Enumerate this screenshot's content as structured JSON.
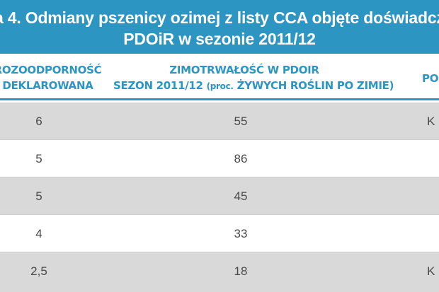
{
  "title": {
    "line1": "a 4. Odmiany pszenicy ozimej z listy CCA objęte doświadcz",
    "line2": "PDOiR w sezonie 2011/12"
  },
  "headers": {
    "col1": [
      "ROZOODPORNOŚĆ",
      "DEKLAROWANA"
    ],
    "col2_line1": "ZIMOTRWAŁOŚĆ W PDOIR",
    "col2_line2_main": "SEZON 2011/12 ",
    "col2_line2_small": "(proc.",
    "col2_line2_rest": " ŻYWYCH ROŚLIN PO ZIMIE)",
    "col3": "PO"
  },
  "rows": [
    {
      "resistance": "6",
      "hardiness": "55",
      "extra": "K"
    },
    {
      "resistance": "5",
      "hardiness": "86",
      "extra": ""
    },
    {
      "resistance": "5",
      "hardiness": "45",
      "extra": ""
    },
    {
      "resistance": "4",
      "hardiness": "33",
      "extra": ""
    },
    {
      "resistance": "2,5",
      "hardiness": "18",
      "extra": "K"
    }
  ],
  "colors": {
    "accent": "#2c95c1",
    "row_shade": "#d9d9d9",
    "text": "#4a4a4a"
  }
}
